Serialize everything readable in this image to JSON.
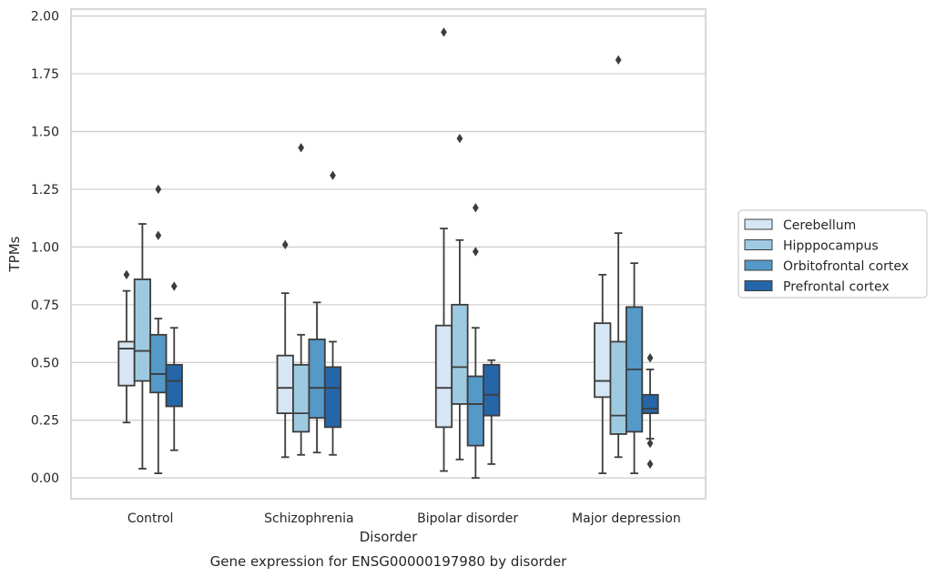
{
  "chart_data": {
    "type": "box",
    "caption": "Gene expression for ENSG00000197980 by disorder",
    "xlabel": "Disorder",
    "ylabel": "TPMs",
    "ylim": [
      -0.09,
      2.03
    ],
    "yticks": [
      0.0,
      0.25,
      0.5,
      0.75,
      1.0,
      1.25,
      1.5,
      1.75,
      2.0
    ],
    "ytick_labels": [
      "0.00",
      "0.25",
      "0.50",
      "0.75",
      "1.00",
      "1.25",
      "1.50",
      "1.75",
      "2.00"
    ],
    "grid": "horizontal",
    "legend_position": "right",
    "categories": [
      "Control",
      "Schizophrenia",
      "Bipolar disorder",
      "Major depression"
    ],
    "series": [
      {
        "name": "Cerebellum",
        "color": "#d6e6f4",
        "boxes": [
          {
            "whislo": 0.24,
            "q1": 0.4,
            "med": 0.56,
            "q3": 0.59,
            "whishi": 0.81,
            "fliers": [
              0.88
            ]
          },
          {
            "whislo": 0.09,
            "q1": 0.28,
            "med": 0.39,
            "q3": 0.53,
            "whishi": 0.8,
            "fliers": [
              1.01
            ]
          },
          {
            "whislo": 0.03,
            "q1": 0.22,
            "med": 0.39,
            "q3": 0.66,
            "whishi": 1.08,
            "fliers": [
              1.93
            ]
          },
          {
            "whislo": 0.02,
            "q1": 0.35,
            "med": 0.42,
            "q3": 0.67,
            "whishi": 0.88,
            "fliers": []
          }
        ]
      },
      {
        "name": "Hipppocampus",
        "color": "#9ecae1",
        "boxes": [
          {
            "whislo": 0.04,
            "q1": 0.42,
            "med": 0.55,
            "q3": 0.86,
            "whishi": 1.1,
            "fliers": []
          },
          {
            "whislo": 0.1,
            "q1": 0.2,
            "med": 0.28,
            "q3": 0.49,
            "whishi": 0.62,
            "fliers": [
              1.43
            ]
          },
          {
            "whislo": 0.08,
            "q1": 0.32,
            "med": 0.48,
            "q3": 0.75,
            "whishi": 1.03,
            "fliers": [
              1.47
            ]
          },
          {
            "whislo": 0.09,
            "q1": 0.19,
            "med": 0.27,
            "q3": 0.59,
            "whishi": 1.06,
            "fliers": [
              1.81
            ]
          }
        ]
      },
      {
        "name": "Orbitofrontal cortex",
        "color": "#5499c7",
        "boxes": [
          {
            "whislo": 0.02,
            "q1": 0.37,
            "med": 0.45,
            "q3": 0.62,
            "whishi": 0.69,
            "fliers": [
              1.05,
              1.25
            ]
          },
          {
            "whislo": 0.11,
            "q1": 0.26,
            "med": 0.39,
            "q3": 0.6,
            "whishi": 0.76,
            "fliers": []
          },
          {
            "whislo": 0.0,
            "q1": 0.14,
            "med": 0.32,
            "q3": 0.44,
            "whishi": 0.65,
            "fliers": [
              0.98,
              1.17
            ]
          },
          {
            "whislo": 0.02,
            "q1": 0.2,
            "med": 0.47,
            "q3": 0.74,
            "whishi": 0.93,
            "fliers": []
          }
        ]
      },
      {
        "name": "Prefrontal cortex",
        "color": "#2566a8",
        "boxes": [
          {
            "whislo": 0.12,
            "q1": 0.31,
            "med": 0.42,
            "q3": 0.49,
            "whishi": 0.65,
            "fliers": [
              0.83
            ]
          },
          {
            "whislo": 0.1,
            "q1": 0.22,
            "med": 0.39,
            "q3": 0.48,
            "whishi": 0.59,
            "fliers": [
              1.31
            ]
          },
          {
            "whislo": 0.06,
            "q1": 0.27,
            "med": 0.36,
            "q3": 0.49,
            "whishi": 0.51,
            "fliers": []
          },
          {
            "whislo": 0.17,
            "q1": 0.28,
            "med": 0.3,
            "q3": 0.36,
            "whishi": 0.47,
            "fliers": [
              0.06,
              0.15,
              0.52
            ]
          }
        ]
      }
    ]
  }
}
